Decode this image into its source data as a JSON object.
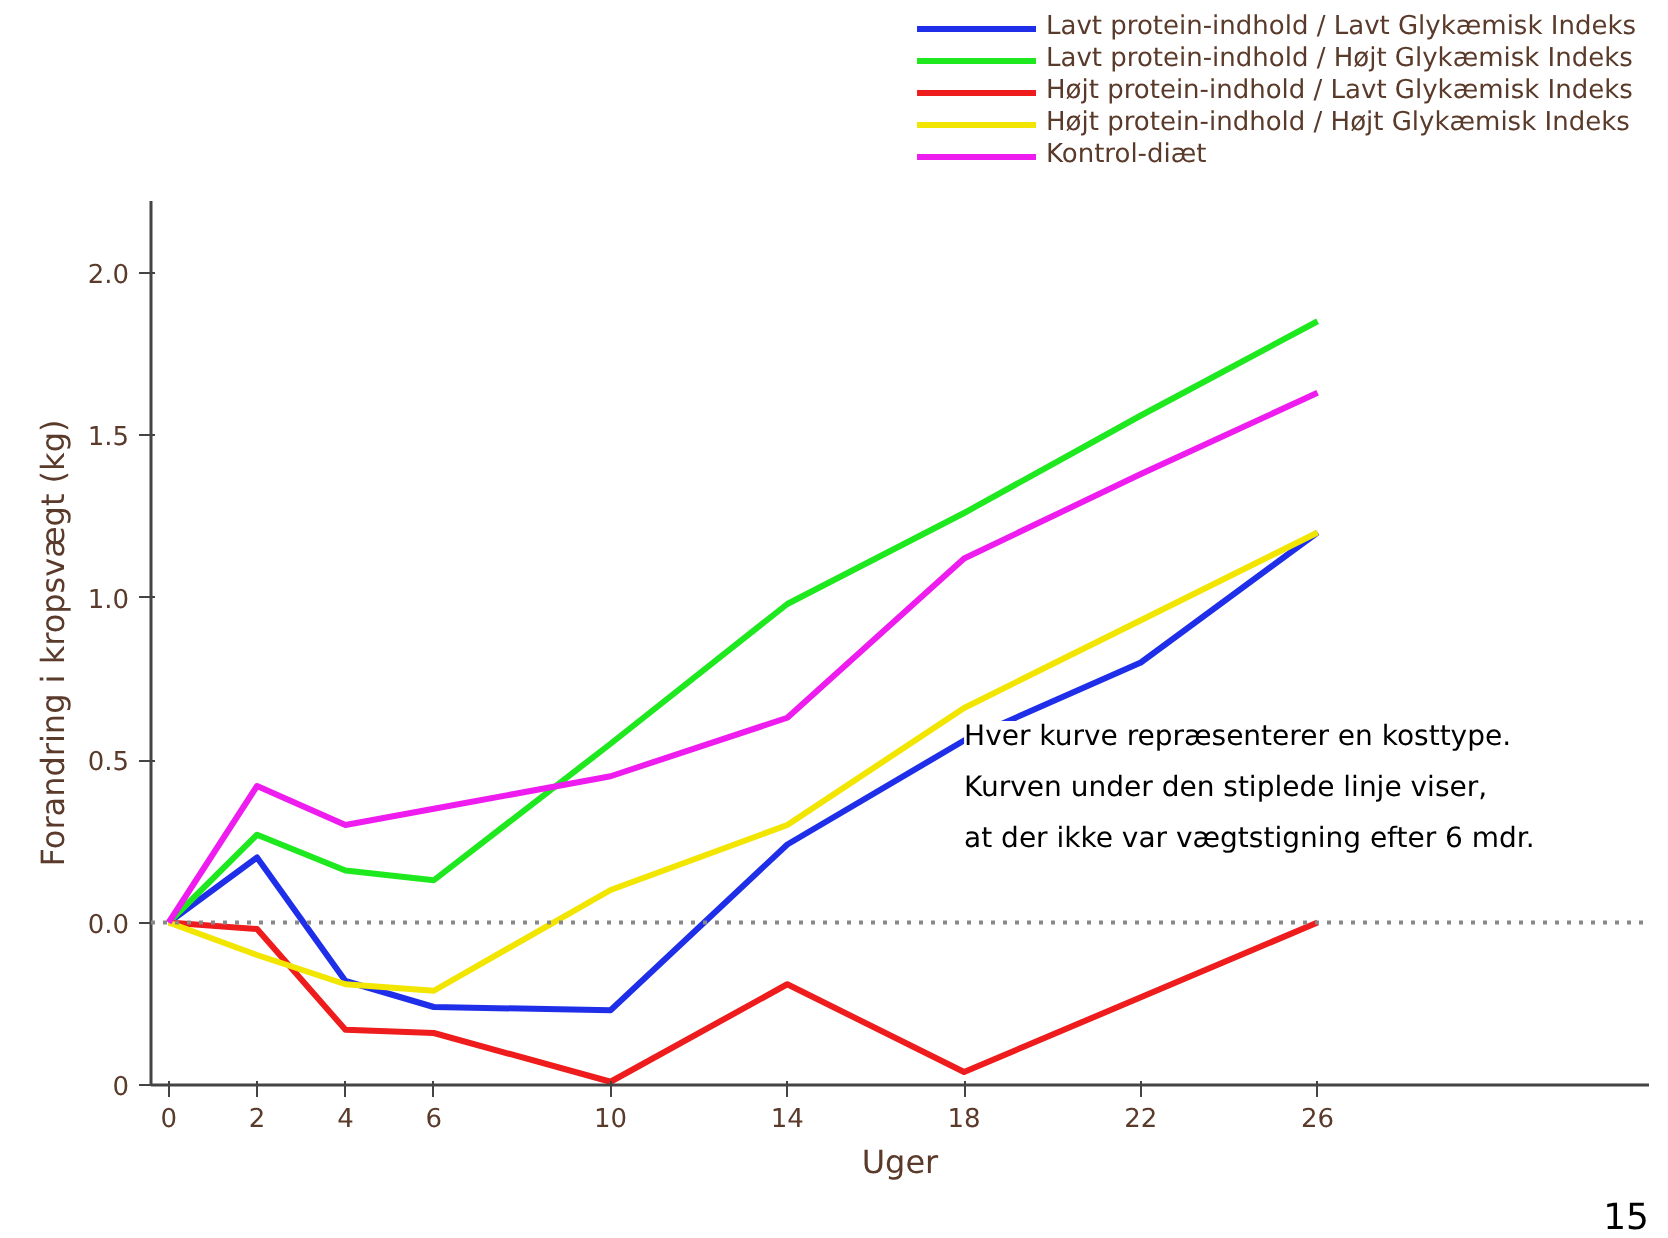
{
  "chart_data": {
    "type": "line",
    "xlabel": "Uger",
    "ylabel": "Forandring i kropsvægt (kg)",
    "x": [
      0,
      2,
      4,
      6,
      10,
      14,
      18,
      22,
      26
    ],
    "series": [
      {
        "name": "Lavt protein-indhold / Lavt Glykæmisk Indeks",
        "color": "#1f2ee8",
        "values": [
          0,
          0.2,
          -0.18,
          -0.26,
          -0.27,
          0.24,
          0.56,
          0.8,
          1.2
        ]
      },
      {
        "name": "Lavt protein-indhold / Højt Glykæmisk Indeks",
        "color": "#1ee81e",
        "values": [
          0,
          0.27,
          0.16,
          0.13,
          0.55,
          0.98,
          1.26,
          1.56,
          1.85
        ]
      },
      {
        "name": "Højt protein-indhold / Lavt Glykæmisk Indeks",
        "color": "#ee1c1c",
        "values": [
          0,
          -0.02,
          -0.33,
          -0.34,
          -0.49,
          -0.19,
          -0.46,
          -0.23,
          0
        ]
      },
      {
        "name": "Højt protein-indhold / Højt Glykæmisk Indeks",
        "color": "#f2e600",
        "values": [
          0,
          -0.1,
          -0.19,
          -0.21,
          0.1,
          0.3,
          0.66,
          0.93,
          1.2
        ]
      },
      {
        "name": "Kontrol-diæt",
        "color": "#ee1cee",
        "values": [
          0,
          0.42,
          0.3,
          0.35,
          0.45,
          0.63,
          1.12,
          1.38,
          1.63
        ]
      }
    ],
    "xlim": [
      -0.4,
      33.5
    ],
    "ylim": [
      -0.5,
      2.22
    ],
    "xticks": [
      0,
      2,
      4,
      6,
      10,
      14,
      18,
      22,
      26
    ],
    "yticks": [
      {
        "value": -0.5,
        "label": "0"
      },
      {
        "value": 0,
        "label": "0.0"
      },
      {
        "value": 0.5,
        "label": "0.5"
      },
      {
        "value": 1,
        "label": "1.0"
      },
      {
        "value": 1.5,
        "label": "1.5"
      },
      {
        "value": 2,
        "label": "2.0"
      }
    ],
    "ref_lines": [
      {
        "axis": "y",
        "value": 0,
        "label": null,
        "color": "#888888",
        "line_style": "dotted"
      }
    ],
    "annotations": [
      {
        "text": "Hver kurve repræsenterer en kosttype.\nKurven under den stiplede linje viser,\nat der ikke var vægtstigning efter 6 mdr.",
        "x": 18,
        "y": 0.62
      },
      "15"
    ],
    "grid": false,
    "legend": "top right",
    "marker": "none",
    "line_style": "solid"
  }
}
